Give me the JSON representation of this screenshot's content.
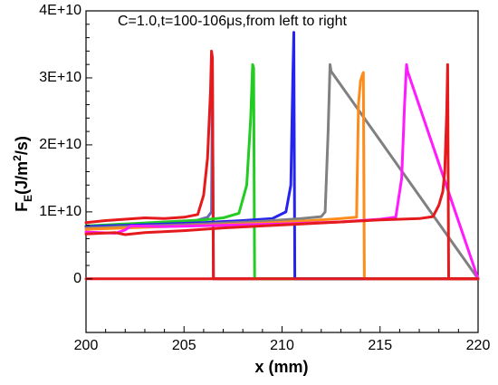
{
  "chart_data": {
    "type": "line",
    "annotation": "C=1.0,t=100-106μs,from left to right",
    "xlabel": "x (mm)",
    "ylabel": {
      "main": "F",
      "sub": "E",
      "rest": "(J/m",
      "sup": "2",
      "end": "/s)"
    },
    "xlim": [
      200,
      220
    ],
    "ylim": [
      -8000000000.0,
      40000000000.0
    ],
    "x_ticks": [
      {
        "v": 200,
        "label": "200"
      },
      {
        "v": 205,
        "label": "205"
      },
      {
        "v": 210,
        "label": "210"
      },
      {
        "v": 215,
        "label": "215"
      },
      {
        "v": 220,
        "label": "220"
      }
    ],
    "y_ticks": [
      {
        "v": 0,
        "label": "0"
      },
      {
        "v": 10000000000.0,
        "label": "1E+10"
      },
      {
        "v": 20000000000.0,
        "label": "2E+10"
      },
      {
        "v": 30000000000.0,
        "label": "3E+10"
      },
      {
        "v": 40000000000.0,
        "label": "4E+10"
      }
    ],
    "grid": false,
    "series": [
      {
        "color": "#6b6bb5",
        "x": [
          200.0,
          201.5,
          203.0,
          204.5,
          205.5,
          206.2,
          206.4,
          206.45,
          206.5,
          220.0
        ],
        "y": [
          7800000000.0,
          7900000000.0,
          8100000000.0,
          8300000000.0,
          8600000000.0,
          9200000000.0,
          10000000000.0,
          31000000000.0,
          0,
          0
        ]
      },
      {
        "color": "#e41a1c",
        "x": [
          200.0,
          201.0,
          202.0,
          203.0,
          204.0,
          205.0,
          205.7,
          206.0,
          206.2,
          206.35,
          206.4,
          206.45,
          206.5,
          220.0
        ],
        "y": [
          8400000000.0,
          8700000000.0,
          8900000000.0,
          9100000000.0,
          9000000000.0,
          9200000000.0,
          9600000000.0,
          12500000000.0,
          18000000000.0,
          28000000000.0,
          34000000000.0,
          33000000000.0,
          0,
          0
        ]
      },
      {
        "color": "#22cc22",
        "x": [
          200.0,
          202.0,
          204.0,
          206.0,
          207.0,
          207.8,
          208.2,
          208.4,
          208.5,
          208.55,
          208.6,
          220.0
        ],
        "y": [
          7900000000.0,
          8200000000.0,
          8500000000.0,
          8800000000.0,
          9100000000.0,
          9800000000.0,
          14000000000.0,
          24000000000.0,
          32000000000.0,
          31500000000.0,
          0,
          0
        ]
      },
      {
        "color": "#2424ee",
        "x": [
          200.0,
          202.0,
          204.0,
          206.0,
          208.0,
          209.5,
          210.2,
          210.45,
          210.55,
          210.6,
          210.65,
          220.0
        ],
        "y": [
          7800000000.0,
          8000000000.0,
          8200000000.0,
          8400000000.0,
          8700000000.0,
          9000000000.0,
          10000000000.0,
          14000000000.0,
          30000000000.0,
          36800000000.0,
          0,
          0
        ]
      },
      {
        "color": "#808080",
        "x": [
          200.0,
          203.0,
          206.0,
          209.0,
          211.0,
          212.0,
          212.2,
          212.35,
          212.45,
          212.5,
          220.0
        ],
        "y": [
          7600000000.0,
          7900000000.0,
          8200000000.0,
          8600000000.0,
          9000000000.0,
          9300000000.0,
          10000000000.0,
          22000000000.0,
          32000000000.0,
          31000000000.0,
          0
        ]
      },
      {
        "color": "#ff8c1a",
        "x": [
          200.0,
          203.0,
          206.0,
          209.0,
          211.5,
          213.0,
          213.8,
          213.9,
          214.0,
          214.1,
          214.15,
          214.2,
          220.0
        ],
        "y": [
          7400000000.0,
          7700000000.0,
          8000000000.0,
          8300000000.0,
          8700000000.0,
          9000000000.0,
          9200000000.0,
          26000000000.0,
          29500000000.0,
          30500000000.0,
          30800000000.0,
          0,
          0
        ]
      },
      {
        "color": "#ff1aff",
        "x": [
          200.0,
          201.5,
          202.0,
          202.3,
          204.0,
          207.0,
          210.0,
          213.0,
          215.0,
          215.8,
          216.1,
          216.25,
          216.35,
          216.4,
          220.0
        ],
        "y": [
          7000000000.0,
          6800000000.0,
          7300000000.0,
          7900000000.0,
          7800000000.0,
          8000000000.0,
          8200000000.0,
          8500000000.0,
          8900000000.0,
          9200000000.0,
          15000000000.0,
          26000000000.0,
          32000000000.0,
          31000000000.0,
          0
        ]
      },
      {
        "color": "#e41a1c",
        "x": [
          200.0,
          201.5,
          202.0,
          203.0,
          205.0,
          207.0,
          209.0,
          211.0,
          213.0,
          215.0,
          217.0,
          217.7,
          218.0,
          218.2,
          218.3,
          218.4,
          218.45,
          218.5,
          220.0
        ],
        "y": [
          6700000000.0,
          6900000000.0,
          6600000000.0,
          6900000000.0,
          7200000000.0,
          7600000000.0,
          7900000000.0,
          8200000000.0,
          8500000000.0,
          8800000000.0,
          9000000000.0,
          9300000000.0,
          11000000000.0,
          13000000000.0,
          16000000000.0,
          25000000000.0,
          32000000000.0,
          0,
          0
        ]
      },
      {
        "color": "#e41a1c",
        "x": [
          200.0,
          220.0
        ],
        "y": [
          0,
          0
        ]
      }
    ]
  }
}
